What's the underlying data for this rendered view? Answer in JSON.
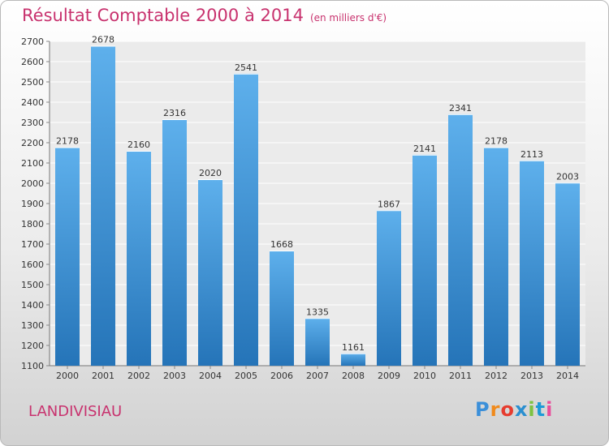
{
  "title": "Résultat Comptable 2000 à 2014",
  "title_unit": "(en milliers d'€)",
  "place": "LANDIVISIAU",
  "logo": {
    "letters": [
      "P",
      "r",
      "o",
      "x",
      "i",
      "t",
      "i"
    ],
    "colors": [
      "#3b8fd9",
      "#f08a1c",
      "#e63c2f",
      "#2a8fd0",
      "#7cc242",
      "#1d9ad6",
      "#e94e9b"
    ]
  },
  "colors": {
    "accent": "#c8326e",
    "bar_top": "#5eb0ec",
    "bar_bottom": "#2574b8"
  },
  "chart_data": {
    "type": "bar",
    "categories": [
      "2000",
      "2001",
      "2002",
      "2003",
      "2004",
      "2005",
      "2006",
      "2007",
      "2008",
      "2009",
      "2010",
      "2011",
      "2012",
      "2013",
      "2014"
    ],
    "values": [
      2178,
      2678,
      2160,
      2316,
      2020,
      2541,
      1668,
      1335,
      1161,
      1867,
      2141,
      2341,
      2178,
      2113,
      2003
    ],
    "ylim": [
      1100,
      2700
    ],
    "yticks": [
      1100,
      1200,
      1300,
      1400,
      1500,
      1600,
      1700,
      1800,
      1900,
      2000,
      2100,
      2200,
      2300,
      2400,
      2500,
      2600,
      2700
    ],
    "grid": true,
    "legend": "none"
  }
}
